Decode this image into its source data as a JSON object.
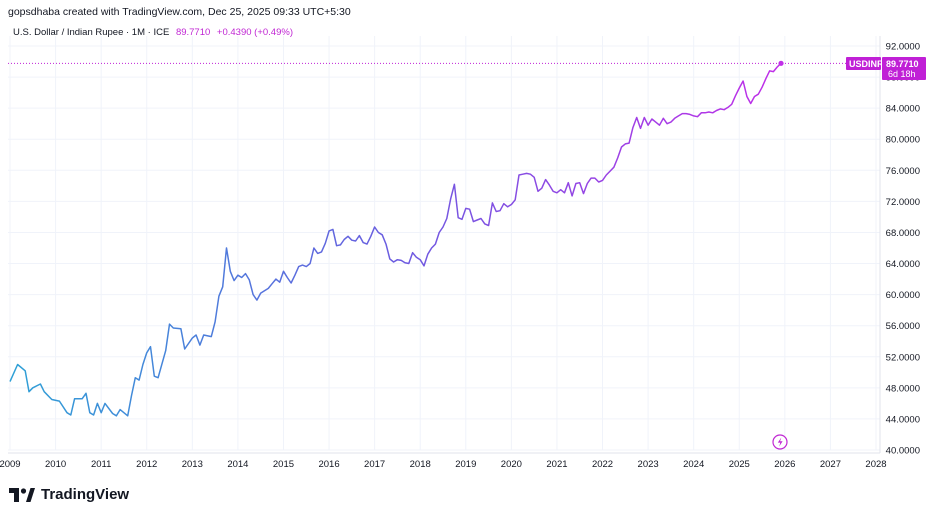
{
  "header": {
    "caption": "gopsdhaba created with TradingView.com, Dec 25, 2025 09:33 UTC+5:30"
  },
  "legend": {
    "symbol_text": "U.S. Dollar / Indian Rupee · 1M · ICE",
    "last_price": "89.7710",
    "change": "+0.4390 (+0.49%)"
  },
  "price_tag": {
    "symbol": "USDINR",
    "price": "89.7710",
    "countdown": "6d 18h"
  },
  "brand": {
    "name": "TradingView",
    "icon": "tradingview-logo-icon"
  },
  "colors": {
    "line_start": "#2ea1d6",
    "line_mid": "#6b5ce0",
    "line_end": "#c02ee8",
    "tag_bg": "#c020d6",
    "grid": "#f0f3fa"
  },
  "chart_data": {
    "type": "line",
    "title": "",
    "xlabel": "",
    "ylabel": "",
    "x_ticks": [
      "2009",
      "2010",
      "2011",
      "2012",
      "2013",
      "2014",
      "2015",
      "2016",
      "2017",
      "2018",
      "2019",
      "2020",
      "2021",
      "2022",
      "2023",
      "2024",
      "2025",
      "2026",
      "2027",
      "2028"
    ],
    "y_ticks": [
      "40.0000",
      "44.0000",
      "48.0000",
      "52.0000",
      "56.0000",
      "60.0000",
      "64.0000",
      "68.0000",
      "72.0000",
      "76.0000",
      "80.0000",
      "84.0000",
      "88.0000",
      "92.0000"
    ],
    "ylim": [
      40,
      93
    ],
    "xlim": [
      "2009-01",
      "2028-06"
    ],
    "grid": true,
    "series": [
      {
        "name": "USDINR",
        "points": [
          [
            "2009-01",
            48.8
          ],
          [
            "2009-03",
            51.0
          ],
          [
            "2009-05",
            50.2
          ],
          [
            "2009-06",
            47.5
          ],
          [
            "2009-07",
            48.0
          ],
          [
            "2009-09",
            48.5
          ],
          [
            "2009-10",
            47.5
          ],
          [
            "2009-12",
            46.5
          ],
          [
            "2010-02",
            46.3
          ],
          [
            "2010-04",
            44.8
          ],
          [
            "2010-05",
            44.5
          ],
          [
            "2010-06",
            46.6
          ],
          [
            "2010-08",
            46.6
          ],
          [
            "2010-09",
            47.3
          ],
          [
            "2010-10",
            44.8
          ],
          [
            "2010-11",
            44.5
          ],
          [
            "2010-12",
            46.0
          ],
          [
            "2011-01",
            44.8
          ],
          [
            "2011-02",
            46.0
          ],
          [
            "2011-04",
            44.7
          ],
          [
            "2011-05",
            44.4
          ],
          [
            "2011-06",
            45.2
          ],
          [
            "2011-08",
            44.4
          ],
          [
            "2011-09",
            47.0
          ],
          [
            "2011-10",
            49.3
          ],
          [
            "2011-11",
            49.0
          ],
          [
            "2011-12",
            51.0
          ],
          [
            "2012-01",
            52.5
          ],
          [
            "2012-02",
            53.3
          ],
          [
            "2012-03",
            49.5
          ],
          [
            "2012-04",
            49.3
          ],
          [
            "2012-06",
            52.8
          ],
          [
            "2012-07",
            56.2
          ],
          [
            "2012-08",
            55.7
          ],
          [
            "2012-10",
            55.6
          ],
          [
            "2012-11",
            53.0
          ],
          [
            "2013-01",
            54.4
          ],
          [
            "2013-02",
            54.8
          ],
          [
            "2013-03",
            53.5
          ],
          [
            "2013-04",
            54.8
          ],
          [
            "2013-06",
            54.6
          ],
          [
            "2013-07",
            56.5
          ],
          [
            "2013-08",
            59.8
          ],
          [
            "2013-09",
            61.0
          ],
          [
            "2013-10",
            66.0
          ],
          [
            "2013-11",
            63.0
          ],
          [
            "2013-12",
            61.8
          ],
          [
            "2014-01",
            62.5
          ],
          [
            "2014-02",
            62.2
          ],
          [
            "2014-03",
            62.7
          ],
          [
            "2014-04",
            61.9
          ],
          [
            "2014-05",
            60.0
          ],
          [
            "2014-06",
            59.3
          ],
          [
            "2014-07",
            60.2
          ],
          [
            "2014-08",
            60.5
          ],
          [
            "2014-09",
            60.8
          ],
          [
            "2014-10",
            61.4
          ],
          [
            "2014-11",
            62.0
          ],
          [
            "2014-12",
            61.6
          ],
          [
            "2015-01",
            63.0
          ],
          [
            "2015-02",
            62.2
          ],
          [
            "2015-03",
            61.5
          ],
          [
            "2015-04",
            62.5
          ],
          [
            "2015-05",
            63.6
          ],
          [
            "2015-06",
            63.8
          ],
          [
            "2015-07",
            63.6
          ],
          [
            "2015-08",
            64.0
          ],
          [
            "2015-09",
            66.0
          ],
          [
            "2015-10",
            65.3
          ],
          [
            "2015-11",
            65.5
          ],
          [
            "2015-12",
            66.6
          ],
          [
            "2016-01",
            68.2
          ],
          [
            "2016-02",
            68.4
          ],
          [
            "2016-03",
            66.3
          ],
          [
            "2016-04",
            66.4
          ],
          [
            "2016-05",
            67.1
          ],
          [
            "2016-06",
            67.5
          ],
          [
            "2016-07",
            67.0
          ],
          [
            "2016-08",
            66.9
          ],
          [
            "2016-09",
            67.6
          ],
          [
            "2016-10",
            66.7
          ],
          [
            "2016-11",
            66.5
          ],
          [
            "2016-12",
            67.5
          ],
          [
            "2017-01",
            68.7
          ],
          [
            "2017-02",
            68.0
          ],
          [
            "2017-03",
            67.7
          ],
          [
            "2017-04",
            66.5
          ],
          [
            "2017-05",
            64.6
          ],
          [
            "2017-06",
            64.2
          ],
          [
            "2017-07",
            64.5
          ],
          [
            "2017-08",
            64.4
          ],
          [
            "2017-09",
            64.1
          ],
          [
            "2017-10",
            64.0
          ],
          [
            "2017-11",
            65.4
          ],
          [
            "2017-12",
            64.8
          ],
          [
            "2018-01",
            64.5
          ],
          [
            "2018-02",
            63.7
          ],
          [
            "2018-03",
            65.2
          ],
          [
            "2018-04",
            66.0
          ],
          [
            "2018-05",
            66.5
          ],
          [
            "2018-06",
            68.0
          ],
          [
            "2018-07",
            68.7
          ],
          [
            "2018-08",
            69.8
          ],
          [
            "2018-09",
            72.3
          ],
          [
            "2018-10",
            74.2
          ],
          [
            "2018-11",
            69.9
          ],
          [
            "2018-12",
            69.7
          ],
          [
            "2019-01",
            71.1
          ],
          [
            "2019-02",
            71.0
          ],
          [
            "2019-03",
            69.4
          ],
          [
            "2019-04",
            69.6
          ],
          [
            "2019-05",
            69.8
          ],
          [
            "2019-06",
            69.1
          ],
          [
            "2019-07",
            68.9
          ],
          [
            "2019-08",
            71.8
          ],
          [
            "2019-09",
            70.7
          ],
          [
            "2019-10",
            70.8
          ],
          [
            "2019-11",
            71.7
          ],
          [
            "2019-12",
            71.3
          ],
          [
            "2020-01",
            71.6
          ],
          [
            "2020-02",
            72.2
          ],
          [
            "2020-03",
            75.4
          ],
          [
            "2020-04",
            75.5
          ],
          [
            "2020-05",
            75.6
          ],
          [
            "2020-06",
            75.5
          ],
          [
            "2020-07",
            75.1
          ],
          [
            "2020-08",
            73.3
          ],
          [
            "2020-09",
            73.7
          ],
          [
            "2020-10",
            74.8
          ],
          [
            "2020-11",
            74.1
          ],
          [
            "2020-12",
            73.3
          ],
          [
            "2021-01",
            73.1
          ],
          [
            "2021-02",
            73.5
          ],
          [
            "2021-03",
            73.1
          ],
          [
            "2021-04",
            74.4
          ],
          [
            "2021-05",
            72.7
          ],
          [
            "2021-06",
            74.3
          ],
          [
            "2021-07",
            74.4
          ],
          [
            "2021-08",
            73.0
          ],
          [
            "2021-09",
            74.3
          ],
          [
            "2021-10",
            75.0
          ],
          [
            "2021-11",
            75.0
          ],
          [
            "2021-12",
            74.5
          ],
          [
            "2022-01",
            74.7
          ],
          [
            "2022-02",
            75.4
          ],
          [
            "2022-03",
            75.9
          ],
          [
            "2022-04",
            76.4
          ],
          [
            "2022-05",
            77.6
          ],
          [
            "2022-06",
            79.0
          ],
          [
            "2022-07",
            79.4
          ],
          [
            "2022-08",
            79.5
          ],
          [
            "2022-09",
            81.5
          ],
          [
            "2022-10",
            82.8
          ],
          [
            "2022-11",
            81.4
          ],
          [
            "2022-12",
            82.8
          ],
          [
            "2023-01",
            81.8
          ],
          [
            "2023-02",
            82.6
          ],
          [
            "2023-03",
            82.2
          ],
          [
            "2023-04",
            81.8
          ],
          [
            "2023-05",
            82.7
          ],
          [
            "2023-06",
            82.0
          ],
          [
            "2023-07",
            82.2
          ],
          [
            "2023-08",
            82.7
          ],
          [
            "2023-09",
            83.0
          ],
          [
            "2023-10",
            83.3
          ],
          [
            "2023-11",
            83.3
          ],
          [
            "2023-12",
            83.2
          ],
          [
            "2024-01",
            83.0
          ],
          [
            "2024-02",
            82.9
          ],
          [
            "2024-03",
            83.4
          ],
          [
            "2024-04",
            83.4
          ],
          [
            "2024-05",
            83.5
          ],
          [
            "2024-06",
            83.4
          ],
          [
            "2024-07",
            83.7
          ],
          [
            "2024-08",
            83.9
          ],
          [
            "2024-09",
            83.8
          ],
          [
            "2024-10",
            84.1
          ],
          [
            "2024-11",
            84.5
          ],
          [
            "2024-12",
            85.6
          ],
          [
            "2025-01",
            86.6
          ],
          [
            "2025-02",
            87.5
          ],
          [
            "2025-03",
            85.5
          ],
          [
            "2025-04",
            84.6
          ],
          [
            "2025-05",
            85.5
          ],
          [
            "2025-06",
            85.8
          ],
          [
            "2025-07",
            86.7
          ],
          [
            "2025-08",
            87.8
          ],
          [
            "2025-09",
            88.8
          ],
          [
            "2025-10",
            88.7
          ],
          [
            "2025-11",
            89.3
          ],
          [
            "2025-12",
            89.771
          ]
        ]
      }
    ]
  }
}
